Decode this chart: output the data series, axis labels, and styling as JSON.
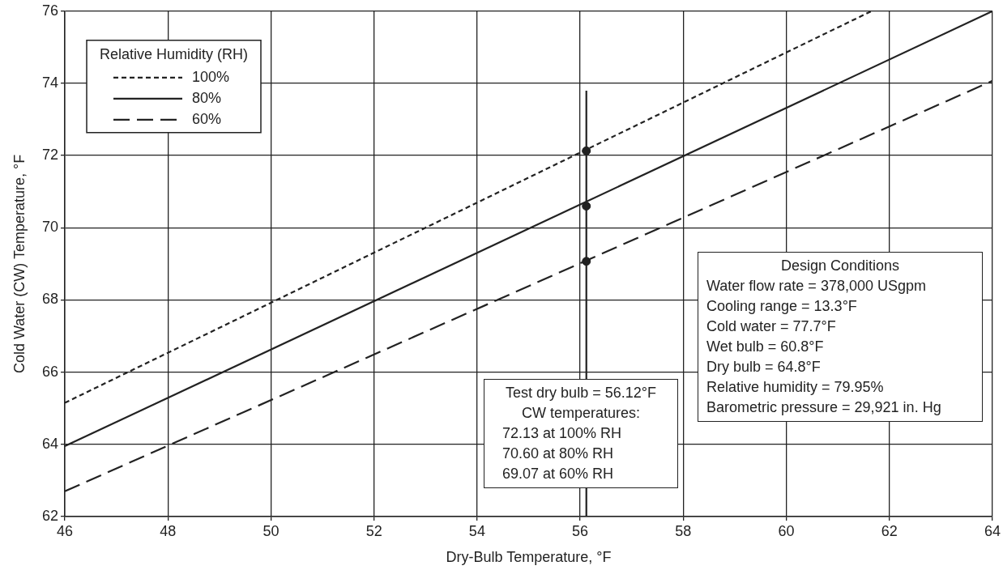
{
  "chart_data": {
    "type": "line",
    "xlabel": "Dry-Bulb Temperature, °F",
    "ylabel": "Cold Water (CW) Temperature, °F",
    "legend_title": "Relative Humidity (RH)",
    "legend": "top left",
    "grid": true,
    "xlim": [
      46,
      64
    ],
    "xticks": [
      46,
      48,
      50,
      52,
      54,
      56,
      58,
      60,
      62,
      64
    ],
    "ylim": [
      62,
      76
    ],
    "yticks": [
      62,
      64,
      66,
      68,
      70,
      72,
      74,
      76
    ],
    "series": [
      {
        "name": "100%",
        "color": "#222222",
        "line_style": "dotted",
        "x": [
          46,
          61.65
        ],
        "values": [
          65.15,
          76
        ]
      },
      {
        "name": "80%",
        "color": "#222222",
        "line_style": "solid",
        "x": [
          46,
          64
        ],
        "values": [
          63.95,
          76
        ]
      },
      {
        "name": "60%",
        "color": "#222222",
        "line_style": "dashed",
        "x": [
          46,
          64
        ],
        "values": [
          62.7,
          74.07
        ]
      },
      {
        "type": "line",
        "color": "#222222",
        "line_style": "solid",
        "x": [
          56.12,
          56.12
        ],
        "values": [
          62,
          73.8
        ]
      },
      {
        "type": "scatter",
        "color": "#222222",
        "marker": "circle",
        "x": [
          56.12,
          56.12,
          56.12
        ],
        "values": [
          72.13,
          70.6,
          69.07
        ]
      }
    ],
    "annotations": [
      "Test dry bulb = 56.12°F\nCW temperatures:\n72.13 at 100% RH\n70.60 at 80% RH\n69.07 at 60% RH",
      "Design Conditions\nWater flow rate = 378,000 USgpm\nCooling range = 13.3°F\nCold water = 77.7°F\nWet bulb = 60.8°F\nDry bulb = 64.8°F\nRelative humidity = 79.95%\nBarometric pressure = 29,921 in. Hg"
    ]
  }
}
